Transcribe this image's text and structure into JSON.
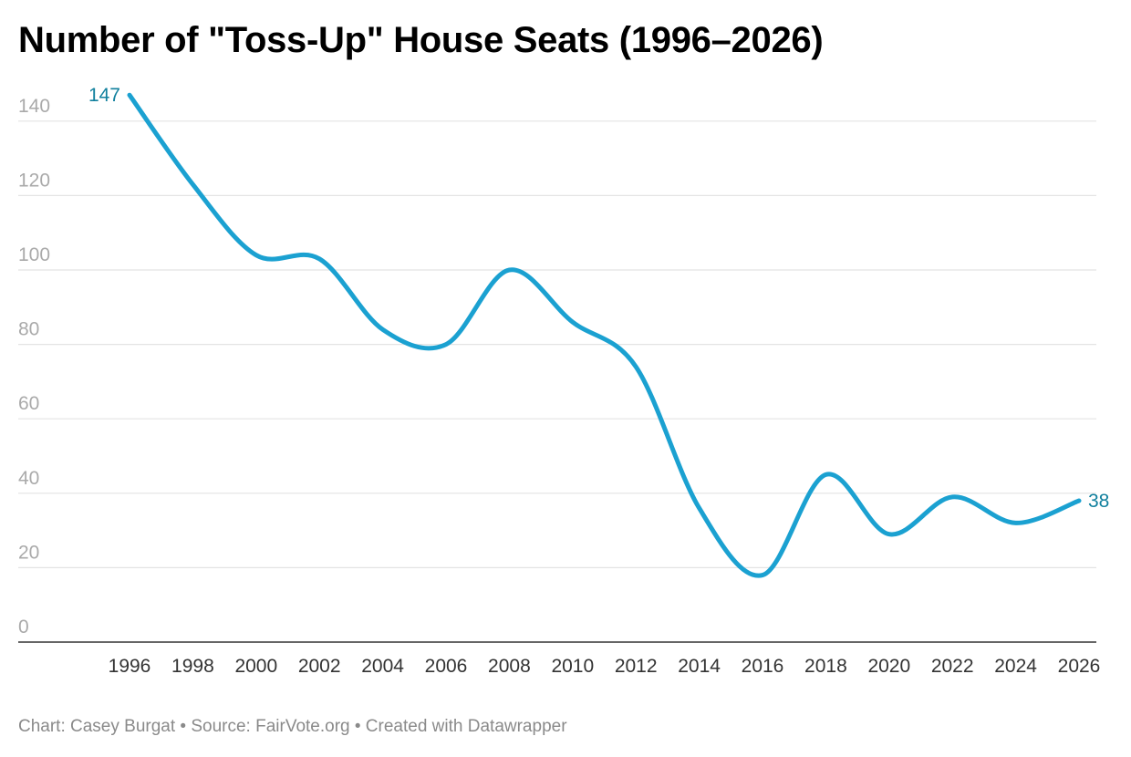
{
  "chart_data": {
    "type": "line",
    "title": "Number of \"Toss-Up\" House Seats (1996–2026)",
    "xlabel": "",
    "ylabel": "",
    "x": [
      1996,
      1998,
      2000,
      2002,
      2004,
      2006,
      2008,
      2010,
      2012,
      2014,
      2016,
      2018,
      2020,
      2022,
      2024,
      2026
    ],
    "series": [
      {
        "values": [
          147,
          123,
          104,
          103,
          84,
          80,
          100,
          86,
          74,
          36,
          18,
          45,
          29,
          39,
          32,
          38
        ]
      }
    ],
    "ylim": [
      0,
      147
    ],
    "xlim": [
      1996,
      2026
    ],
    "yticks": [
      0,
      20,
      40,
      60,
      80,
      100,
      120,
      140
    ],
    "grid": true,
    "legend": "none",
    "labels": {
      "first": "147",
      "last": "38"
    },
    "colors": {
      "line": "#1ba1d1",
      "label": "#11809e",
      "grid": "#e4e4e4",
      "axis": "#333333"
    }
  },
  "footer": "Chart: Casey Burgat • Source: FairVote.org • Created with Datawrapper"
}
